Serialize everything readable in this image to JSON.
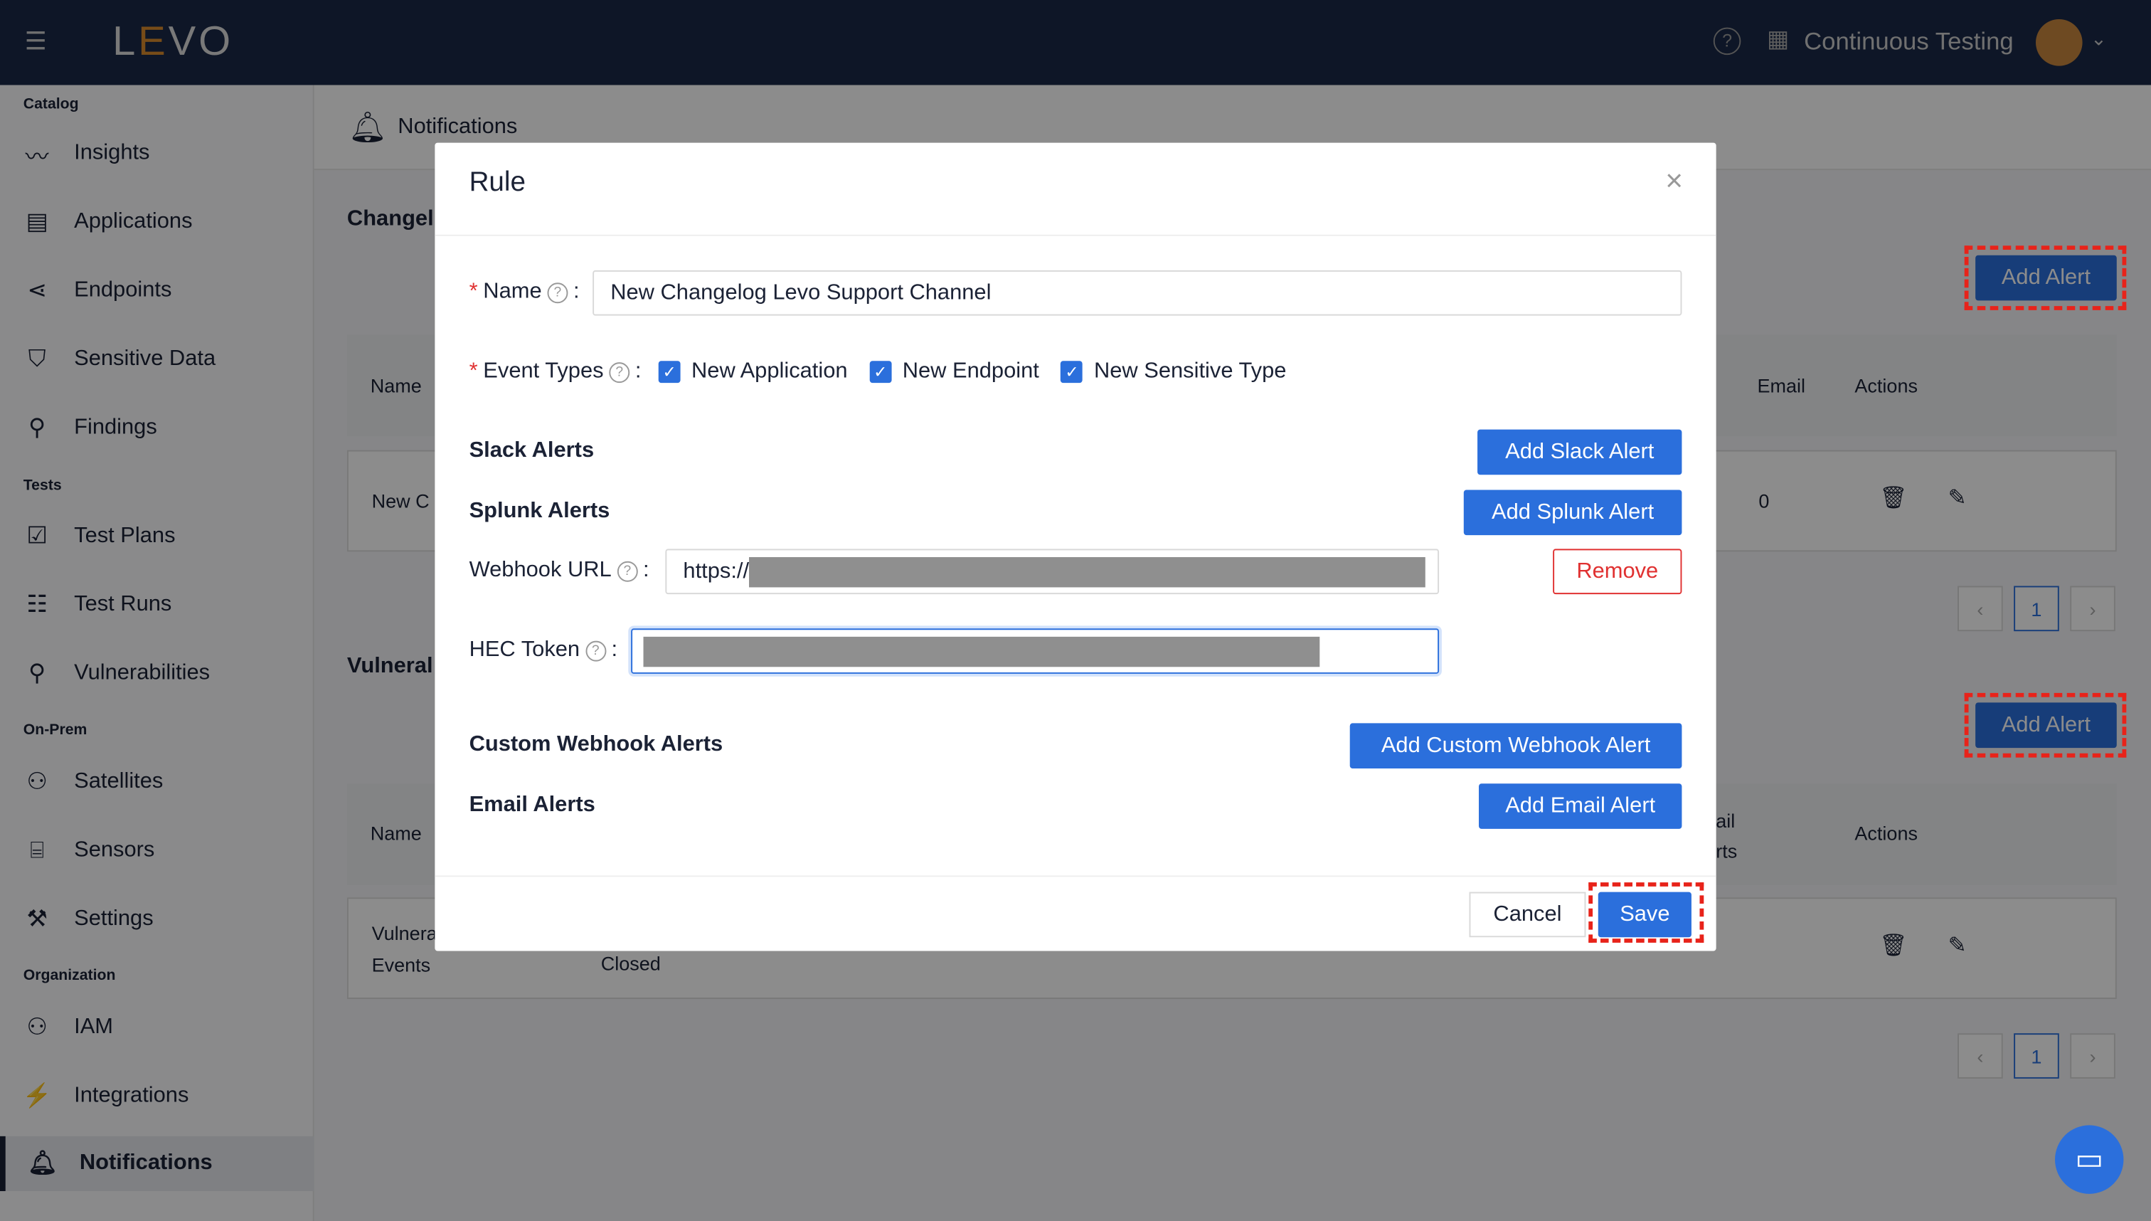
{
  "header": {
    "logo": "LEVO",
    "org": "Continuous Testing"
  },
  "sidebar": {
    "sections": [
      {
        "title": "Catalog",
        "items": [
          {
            "label": "Insights",
            "icon": "chart-line-icon"
          },
          {
            "label": "Applications",
            "icon": "documents-icon"
          },
          {
            "label": "Endpoints",
            "icon": "share-icon"
          },
          {
            "label": "Sensitive Data",
            "icon": "shield-icon"
          },
          {
            "label": "Findings",
            "icon": "search-icon"
          }
        ]
      },
      {
        "title": "Tests",
        "items": [
          {
            "label": "Test Plans",
            "icon": "calendar-check-icon"
          },
          {
            "label": "Test Runs",
            "icon": "list-icon"
          },
          {
            "label": "Vulnerabilities",
            "icon": "search-bug-icon"
          }
        ]
      },
      {
        "title": "On-Prem",
        "items": [
          {
            "label": "Satellites",
            "icon": "network-icon"
          },
          {
            "label": "Sensors",
            "icon": "router-icon"
          },
          {
            "label": "Settings",
            "icon": "wrench-icon"
          }
        ]
      },
      {
        "title": "Organization",
        "items": [
          {
            "label": "IAM",
            "icon": "users-icon"
          },
          {
            "label": "Integrations",
            "icon": "plug-icon"
          },
          {
            "label": "Notifications",
            "icon": "bell-icon",
            "active": true
          }
        ]
      }
    ]
  },
  "page": {
    "title": "Notifications",
    "section1": "Changel",
    "section2": "Vulneral",
    "add_alert": "Add Alert",
    "table1": {
      "headers": {
        "name": "Name",
        "email": "Email",
        "actions": "Actions"
      },
      "row": {
        "name": "New C",
        "email": "0"
      }
    },
    "table2": {
      "headers": {
        "name": "Name",
        "email": "nail\nerts",
        "actions": "Actions"
      },
      "row": {
        "name": "Vulnera\nEvents",
        "status": "Closed"
      }
    },
    "page_num": "1"
  },
  "modal": {
    "title": "Rule",
    "name_label": "Name",
    "name_value": "New Changelog Levo Support Channel",
    "event_types_label": "Event Types",
    "event_types": [
      {
        "label": "New Application",
        "checked": true
      },
      {
        "label": "New Endpoint",
        "checked": true
      },
      {
        "label": "New Sensitive Type",
        "checked": true
      }
    ],
    "slack": {
      "title": "Slack Alerts",
      "button": "Add Slack Alert"
    },
    "splunk": {
      "title": "Splunk Alerts",
      "button": "Add Splunk Alert",
      "webhook_label": "Webhook URL",
      "webhook_value": "https://",
      "hec_label": "HEC Token",
      "remove": "Remove"
    },
    "custom": {
      "title": "Custom Webhook Alerts",
      "button": "Add Custom Webhook Alert"
    },
    "email": {
      "title": "Email Alerts",
      "button": "Add Email Alert"
    },
    "cancel": "Cancel",
    "save": "Save"
  },
  "colors": {
    "primary": "#2b6fdc",
    "highlight": "#e8231a",
    "danger": "#e03131"
  }
}
